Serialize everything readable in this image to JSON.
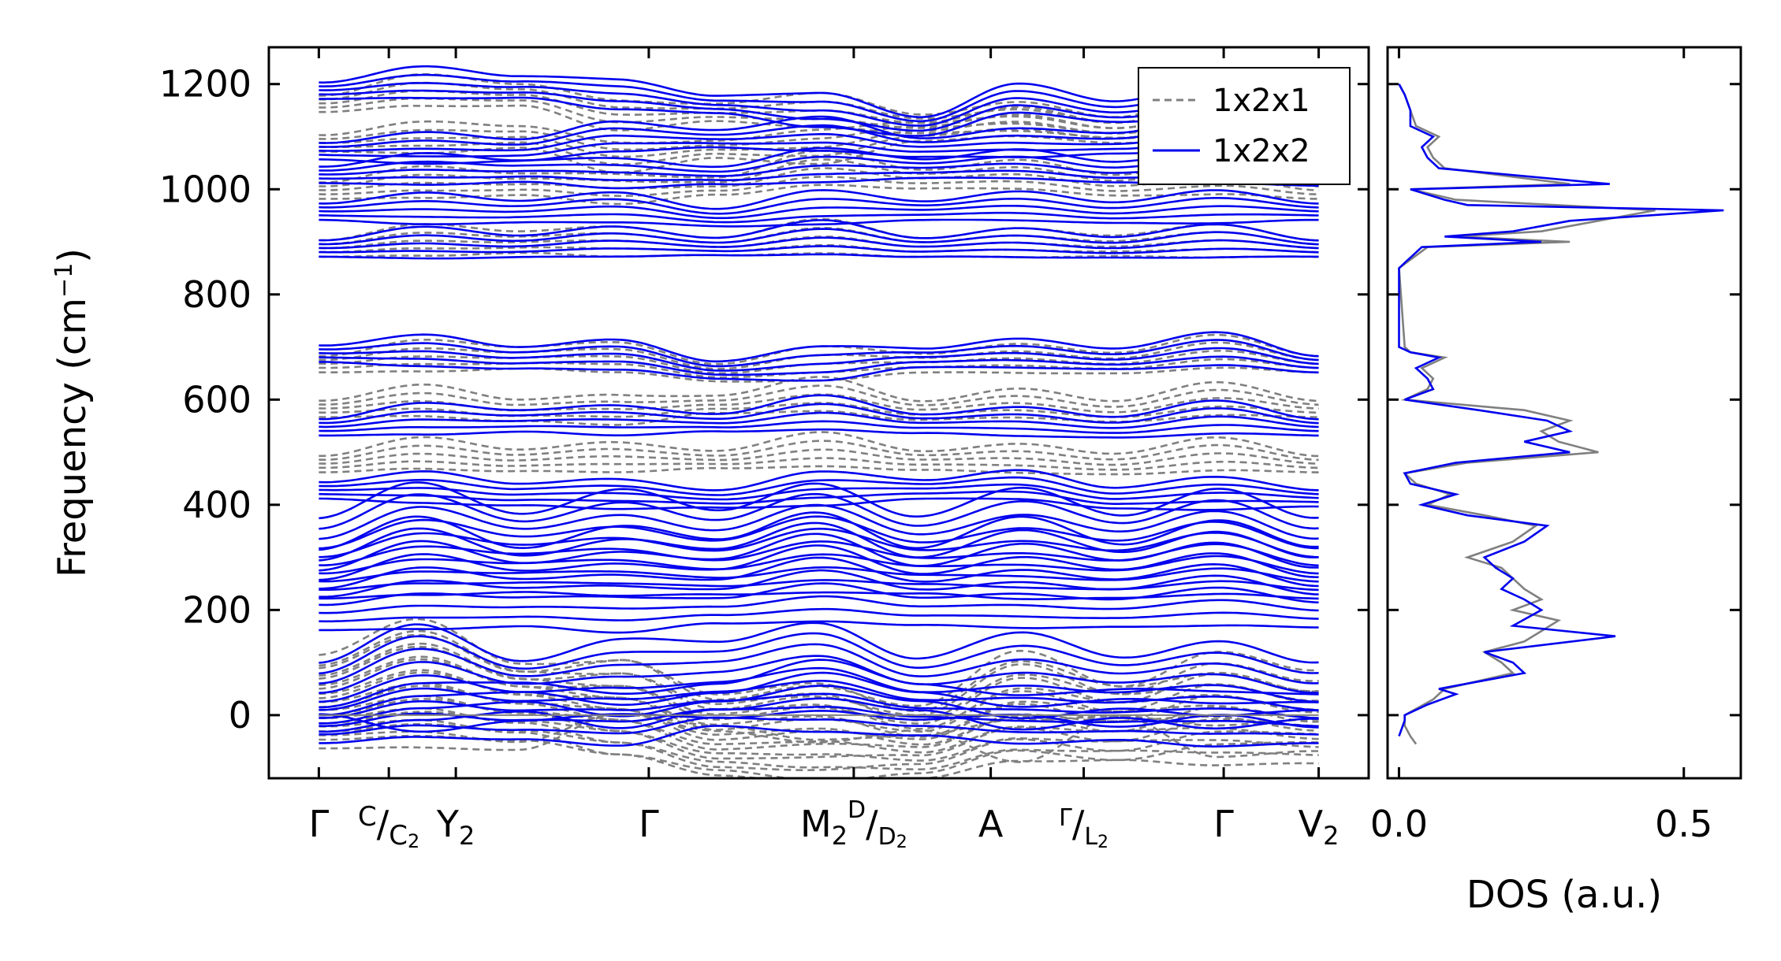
{
  "chart_data": [
    {
      "type": "line",
      "panel": "phonon-dispersion",
      "ylabel": "Frequency (cm",
      "ylabel_sup": "−1",
      "ylabel_end": ")",
      "ylim": [
        -120,
        1270
      ],
      "yticks": [
        0,
        200,
        400,
        600,
        800,
        1000,
        1200
      ],
      "xlim": [
        -0.05,
        1.05
      ],
      "kpath": [
        {
          "x": 0.0,
          "main": "Γ"
        },
        {
          "x": 0.07,
          "main": "C",
          "small": "C",
          "sub": "2"
        },
        {
          "x": 0.137,
          "main": "Y",
          "sub": "2"
        },
        {
          "x": 0.33,
          "main": "Γ"
        },
        {
          "x": 0.535,
          "main": "M",
          "sub": "2",
          "sup": "D",
          "small": "D",
          "sub2": "2"
        },
        {
          "x": 0.672,
          "main": "A"
        },
        {
          "x": 0.765,
          "small_top": "Γ",
          "small": "L",
          "sub": "2"
        },
        {
          "x": 0.905,
          "main": "Γ"
        },
        {
          "x": 1.0,
          "main": "V",
          "sub": "2"
        }
      ],
      "series": [
        {
          "name": "1x2x1",
          "color": "#808080",
          "style": "dashed",
          "representative_bands_cm1": [
            [
              35,
              40,
              35,
              0,
              -20,
              -45,
              -40,
              -10,
              0,
              -20,
              -10
            ],
            [
              60,
              70,
              50,
              0,
              -30,
              -50,
              -30,
              10,
              0,
              20,
              30
            ],
            [
              490,
              500,
              495,
              490,
              500,
              505,
              495,
              490,
              490,
              495,
              490
            ],
            [
              595,
              600,
              590,
              580,
              605,
              610,
              590,
              595,
              590,
              600,
              595
            ],
            [
              680,
              685,
              690,
              680,
              665,
              668,
              680,
              680,
              682,
              690,
              680
            ],
            [
              900,
              905,
              910,
              900,
              905,
              910,
              900,
              900,
              905,
              900,
              900
            ],
            [
              1010,
              1015,
              1020,
              1000,
              1020,
              1040,
              1030,
              1030,
              1020,
              1020,
              1010
            ],
            [
              1100,
              1100,
              1110,
              1060,
              1090,
              1080,
              1120,
              1130,
              1120,
              1125,
              1110
            ],
            [
              1175,
              1190,
              1190,
              1140,
              1160,
              1150,
              1135,
              1140,
              1130,
              1150,
              1140
            ]
          ]
        },
        {
          "name": "1x2x2",
          "color": "#0000ee",
          "style": "solid",
          "representative_bands_cm1": [
            [
              0,
              20,
              40,
              0,
              45,
              60,
              40,
              0,
              30,
              0,
              25
            ],
            [
              45,
              60,
              55,
              40,
              80,
              70,
              60,
              45,
              55,
              40,
              45
            ],
            [
              260,
              265,
              270,
              255,
              275,
              280,
              270,
              265,
              270,
              270,
              265
            ],
            [
              320,
              330,
              335,
              325,
              330,
              335,
              330,
              320,
              325,
              330,
              320
            ],
            [
              440,
              435,
              430,
              420,
              425,
              430,
              440,
              440,
              425,
              420,
              425
            ],
            [
              560,
              565,
              570,
              560,
              570,
              575,
              565,
              560,
              560,
              565,
              560
            ],
            [
              700,
              695,
              690,
              685,
              670,
              668,
              690,
              690,
              690,
              695,
              680
            ],
            [
              900,
              900,
              902,
              900,
              905,
              908,
              900,
              900,
              902,
              900,
              900
            ],
            [
              970,
              965,
              968,
              965,
              960,
              965,
              970,
              970,
              968,
              965,
              970
            ],
            [
              1040,
              1040,
              1045,
              1030,
              1040,
              1045,
              1050,
              1050,
              1045,
              1040,
              1035
            ],
            [
              1085,
              1080,
              1085,
              1100,
              1110,
              1105,
              1090,
              1090,
              1100,
              1105,
              1095
            ],
            [
              1200,
              1205,
              1205,
              1180,
              1175,
              1150,
              1130,
              1175,
              1160,
              1170,
              1165
            ]
          ]
        }
      ],
      "legend": {
        "position": "top-right",
        "entries": [
          "1x2x1",
          "1x2x2"
        ]
      },
      "zero_line": 0
    },
    {
      "type": "line",
      "panel": "density-of-states",
      "xlabel": "DOS (a.u.)",
      "xlim": [
        -0.02,
        0.6
      ],
      "xticks": [
        0.0,
        0.5
      ],
      "ylim": [
        -120,
        1270
      ],
      "series": [
        {
          "name": "1x2x1",
          "color": "#808080",
          "y": [
            -55,
            -40,
            -20,
            0,
            30,
            50,
            60,
            80,
            100,
            120,
            140,
            160,
            180,
            200,
            220,
            240,
            260,
            280,
            300,
            330,
            360,
            380,
            400,
            420,
            440,
            460,
            480,
            500,
            520,
            540,
            560,
            580,
            600,
            620,
            640,
            660,
            680,
            690,
            700,
            850,
            890,
            900,
            910,
            920,
            940,
            960,
            980,
            1000,
            1010,
            1040,
            1060,
            1080,
            1100,
            1120,
            1150,
            1180,
            1200
          ],
          "values": [
            0.03,
            0.02,
            0.01,
            0.01,
            0.06,
            0.08,
            0.12,
            0.2,
            0.18,
            0.15,
            0.22,
            0.25,
            0.28,
            0.2,
            0.25,
            0.22,
            0.2,
            0.18,
            0.12,
            0.2,
            0.24,
            0.15,
            0.05,
            0.09,
            0.03,
            0.01,
            0.12,
            0.35,
            0.28,
            0.25,
            0.3,
            0.22,
            0.01,
            0.05,
            0.06,
            0.04,
            0.08,
            0.02,
            0.01,
            0.0,
            0.05,
            0.3,
            0.1,
            0.25,
            0.35,
            0.45,
            0.1,
            0.02,
            0.3,
            0.08,
            0.06,
            0.05,
            0.07,
            0.03,
            0.02,
            0.01,
            0.0
          ]
        },
        {
          "name": "1x2x2",
          "color": "#0000ee",
          "y": [
            -40,
            -10,
            0,
            20,
            40,
            50,
            60,
            80,
            100,
            120,
            150,
            170,
            200,
            220,
            240,
            260,
            280,
            300,
            330,
            360,
            380,
            400,
            420,
            440,
            460,
            480,
            500,
            520,
            540,
            560,
            580,
            600,
            620,
            640,
            660,
            680,
            690,
            700,
            850,
            890,
            900,
            910,
            920,
            940,
            960,
            970,
            980,
            1000,
            1010,
            1040,
            1060,
            1080,
            1100,
            1120,
            1150,
            1180,
            1200
          ],
          "values": [
            0.0,
            0.01,
            0.01,
            0.05,
            0.1,
            0.07,
            0.12,
            0.22,
            0.2,
            0.15,
            0.38,
            0.2,
            0.25,
            0.22,
            0.18,
            0.2,
            0.17,
            0.15,
            0.22,
            0.26,
            0.12,
            0.04,
            0.1,
            0.02,
            0.01,
            0.1,
            0.3,
            0.22,
            0.3,
            0.26,
            0.14,
            0.01,
            0.06,
            0.05,
            0.03,
            0.07,
            0.02,
            0.0,
            0.0,
            0.04,
            0.25,
            0.08,
            0.2,
            0.3,
            0.57,
            0.12,
            0.08,
            0.02,
            0.37,
            0.07,
            0.05,
            0.04,
            0.06,
            0.02,
            0.02,
            0.01,
            0.0
          ]
        }
      ]
    }
  ]
}
